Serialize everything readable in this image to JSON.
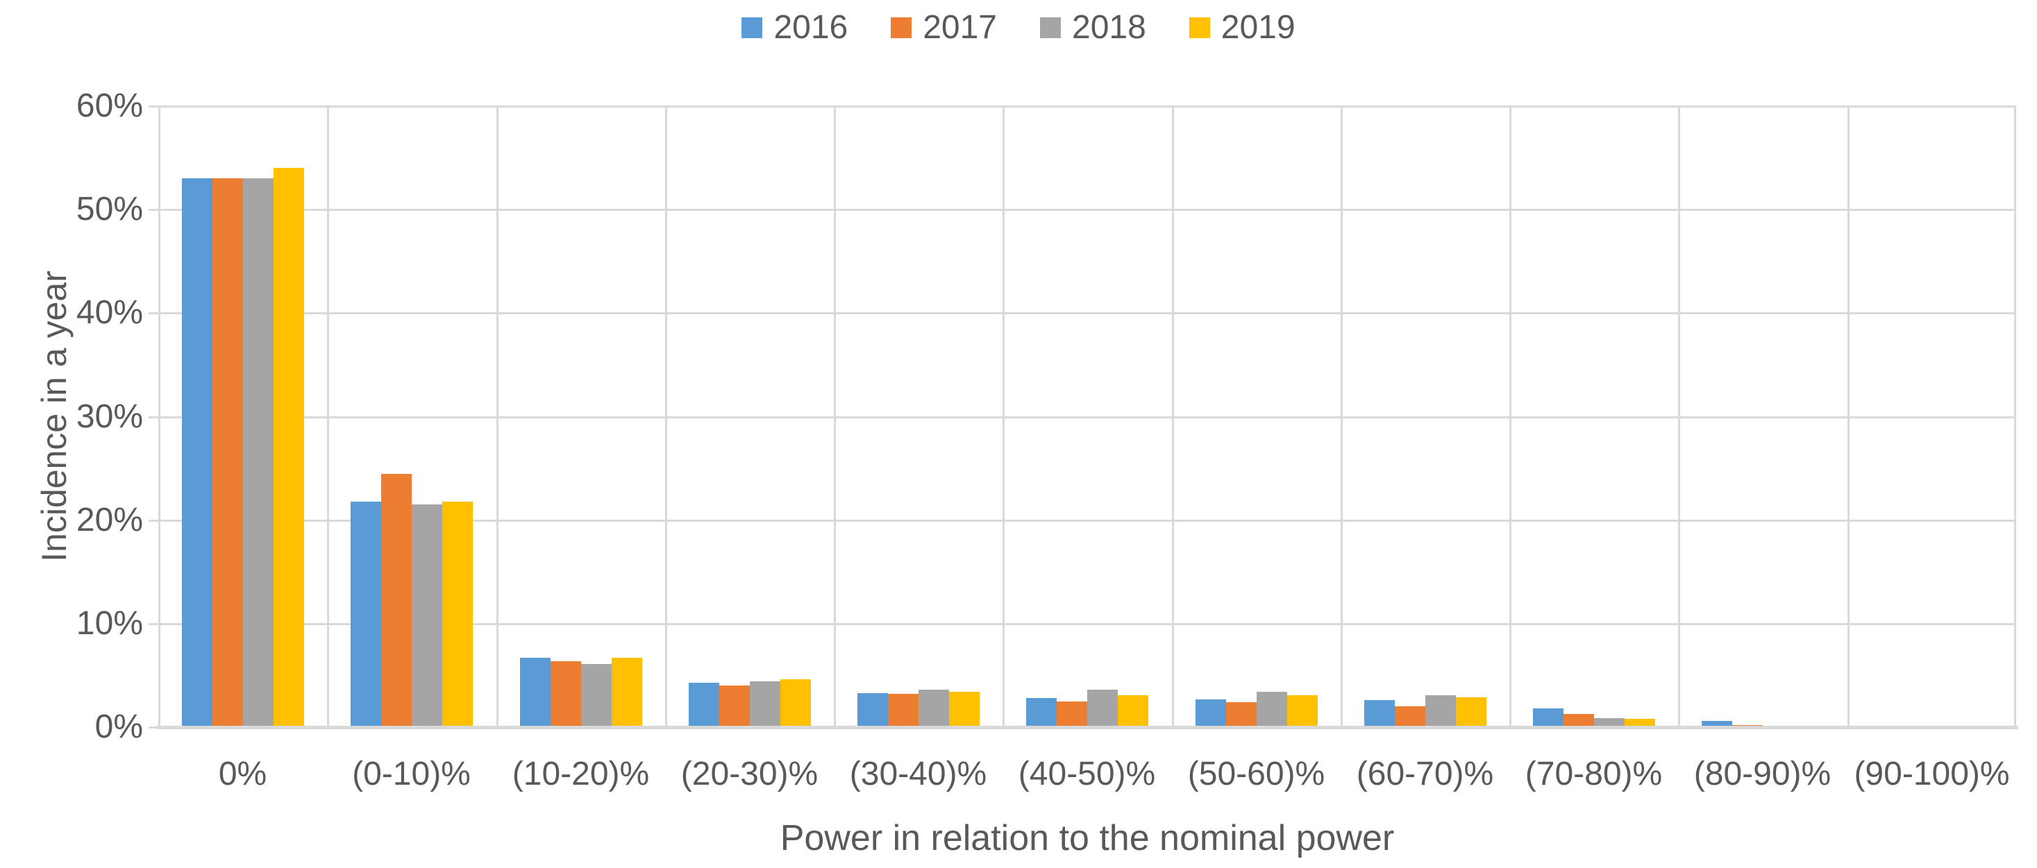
{
  "chart_data": {
    "type": "bar",
    "title": "",
    "xlabel": "Power in relation to the nominal power",
    "ylabel": "Incidence in a year",
    "categories": [
      "0%",
      "(0-10)%",
      "(10-20)%",
      "(20-30)%",
      "(30-40)%",
      "(40-50)%",
      "(50-60)%",
      "(60-70)%",
      "(70-80)%",
      "(80-90)%",
      "(90-100)%"
    ],
    "series": [
      {
        "name": "2016",
        "color": "#5B9BD5",
        "values": [
          53.0,
          21.8,
          6.7,
          4.3,
          3.3,
          2.8,
          2.7,
          2.6,
          1.8,
          0.6,
          0
        ]
      },
      {
        "name": "2017",
        "color": "#ED7D31",
        "values": [
          53.0,
          24.5,
          6.4,
          4.0,
          3.2,
          2.5,
          2.4,
          2.0,
          1.3,
          0.2,
          0
        ]
      },
      {
        "name": "2018",
        "color": "#A5A5A5",
        "values": [
          53.0,
          21.5,
          6.1,
          4.4,
          3.6,
          3.6,
          3.4,
          3.1,
          0.9,
          0,
          0
        ]
      },
      {
        "name": "2019",
        "color": "#FFC000",
        "values": [
          54.0,
          21.8,
          6.7,
          4.6,
          3.4,
          3.1,
          3.1,
          2.9,
          0.8,
          0,
          0
        ]
      }
    ],
    "ylim": [
      0,
      60
    ],
    "ytick_step": 10,
    "yticks": [
      "0%",
      "10%",
      "20%",
      "30%",
      "40%",
      "50%",
      "60%"
    ],
    "grid": true,
    "legend_position": "top"
  },
  "colors": {
    "gridline": "#d9d9d9",
    "text": "#595959",
    "background": "#ffffff"
  }
}
